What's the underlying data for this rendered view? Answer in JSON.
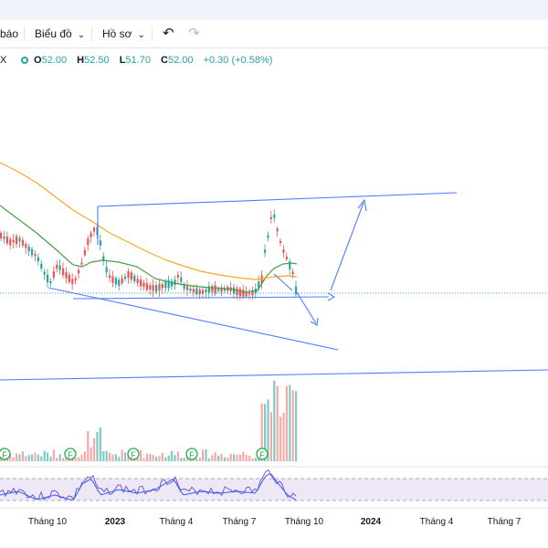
{
  "toolbar": {
    "alerts_label_partial": "báo",
    "chart_label": "Biểu đồ",
    "profile_label": "Hồ sơ",
    "undo_icon": "undo-icon",
    "redo_icon": "redo-icon"
  },
  "legend": {
    "symbol_partial": "X",
    "open_key": "O",
    "open": "52.00",
    "high_key": "H",
    "high": "52.50",
    "low_key": "L",
    "low": "51.70",
    "close_key": "C",
    "close": "52.00",
    "change": "+0.30 (+0.58%)"
  },
  "colors": {
    "up": "#26a69a",
    "down": "#ef5350",
    "ma_short": "#43a047",
    "ma_long": "#f9a825",
    "trendline": "#4e7cff",
    "rsi_line": "#7e57c2",
    "rsi_signal": "#2962ff",
    "rsi_band": "#ede7f6"
  },
  "events": {
    "marker_label": "F",
    "count": 5
  },
  "xaxis": {
    "labels": [
      {
        "text": "Tháng 10",
        "year": false
      },
      {
        "text": "2023",
        "year": true
      },
      {
        "text": "Tháng 4",
        "year": false
      },
      {
        "text": "Tháng 7",
        "year": false
      },
      {
        "text": "Tháng 10",
        "year": false
      },
      {
        "text": "2024",
        "year": true
      },
      {
        "text": "Tháng 4",
        "year": false
      },
      {
        "text": "Tháng 7",
        "year": false
      }
    ]
  }
}
